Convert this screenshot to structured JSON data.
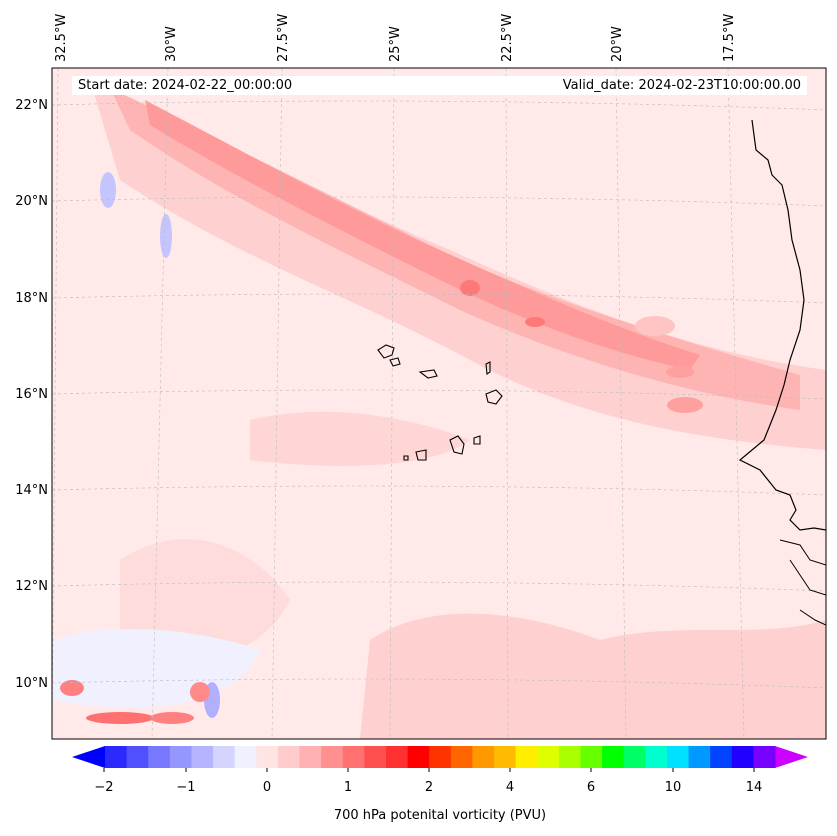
{
  "map": {
    "header": {
      "start_date": "Start date: 2024-02-22_00:00:00",
      "valid_date": "Valid_date: 2024-02-23T10:00:00.00"
    },
    "lon_labels": [
      "32.5°W",
      "30°W",
      "27.5°W",
      "25°W",
      "22.5°W",
      "20°W",
      "17.5°W"
    ],
    "lat_labels": [
      "22°N",
      "20°N",
      "18°N",
      "16°N",
      "14°N",
      "12°N",
      "10°N"
    ],
    "background_color": "#ffe9e9"
  },
  "colorbar": {
    "ticks": [
      "−2",
      "−1",
      "0",
      "1",
      "2",
      "4",
      "6",
      "10",
      "14"
    ],
    "label": "700 hPa potenital vorticity (PVU)",
    "colors": [
      "#0000ff",
      "#2a2aff",
      "#5050ff",
      "#7878ff",
      "#9696ff",
      "#b4b4ff",
      "#d4d4ff",
      "#f0f0ff",
      "#ffe4e4",
      "#ffcccc",
      "#ffb0b0",
      "#ff9090",
      "#ff7070",
      "#ff5050",
      "#ff3030",
      "#ff0000",
      "#ff3300",
      "#ff6600",
      "#ff9900",
      "#ffbb00",
      "#ffee00",
      "#ddff00",
      "#aaff00",
      "#66ff00",
      "#00ff00",
      "#00ff66",
      "#00ffcc",
      "#00e0ff",
      "#0099ff",
      "#0044ff",
      "#2200ff",
      "#7700ff",
      "#cc00ff"
    ]
  }
}
